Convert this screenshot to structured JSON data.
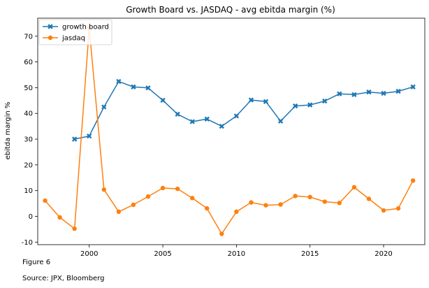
{
  "chart_data": {
    "type": "line",
    "title": "Growth Board vs. JASDAQ - avg ebitda margin (%)",
    "xlabel": "",
    "ylabel": "ebitda margin %",
    "xlim": [
      1996.5,
      2022.8
    ],
    "ylim": [
      -11,
      77
    ],
    "xticks": [
      2000,
      2005,
      2010,
      2015,
      2020
    ],
    "yticks": [
      -10,
      0,
      10,
      20,
      30,
      40,
      50,
      60,
      70
    ],
    "grid": false,
    "legend_position": "top-left",
    "series": [
      {
        "name": "growth board",
        "color": "#1f77b4",
        "marker": "x",
        "x": [
          1999,
          2000,
          2001,
          2002,
          2003,
          2004,
          2005,
          2006,
          2007,
          2008,
          2009,
          2010,
          2011,
          2012,
          2013,
          2014,
          2015,
          2016,
          2017,
          2018,
          2019,
          2020,
          2021,
          2022
        ],
        "values": [
          30.0,
          31.2,
          42.5,
          52.4,
          50.3,
          49.9,
          45.1,
          39.7,
          36.8,
          37.8,
          35.0,
          39.0,
          45.2,
          44.6,
          37.0,
          42.9,
          43.3,
          44.8,
          47.6,
          47.3,
          48.3,
          47.8,
          48.6,
          50.3
        ]
      },
      {
        "name": "jasdaq",
        "color": "#ff7f0e",
        "marker": "o",
        "x": [
          1997,
          1998,
          1999,
          2000,
          2001,
          2002,
          2003,
          2004,
          2005,
          2006,
          2007,
          2008,
          2009,
          2010,
          2011,
          2012,
          2013,
          2014,
          2015,
          2016,
          2017,
          2018,
          2019,
          2020,
          2021,
          2022
        ],
        "values": [
          6.1,
          -0.4,
          -4.8,
          73.2,
          10.4,
          1.8,
          4.5,
          7.7,
          11.0,
          10.7,
          7.1,
          3.1,
          -6.8,
          1.8,
          5.4,
          4.3,
          4.6,
          7.9,
          7.5,
          5.7,
          5.2,
          11.3,
          6.8,
          2.3,
          3.1,
          13.9
        ]
      }
    ]
  },
  "captions": {
    "figure": "Figure 6",
    "source": "Source: JPX, Bloomberg"
  }
}
